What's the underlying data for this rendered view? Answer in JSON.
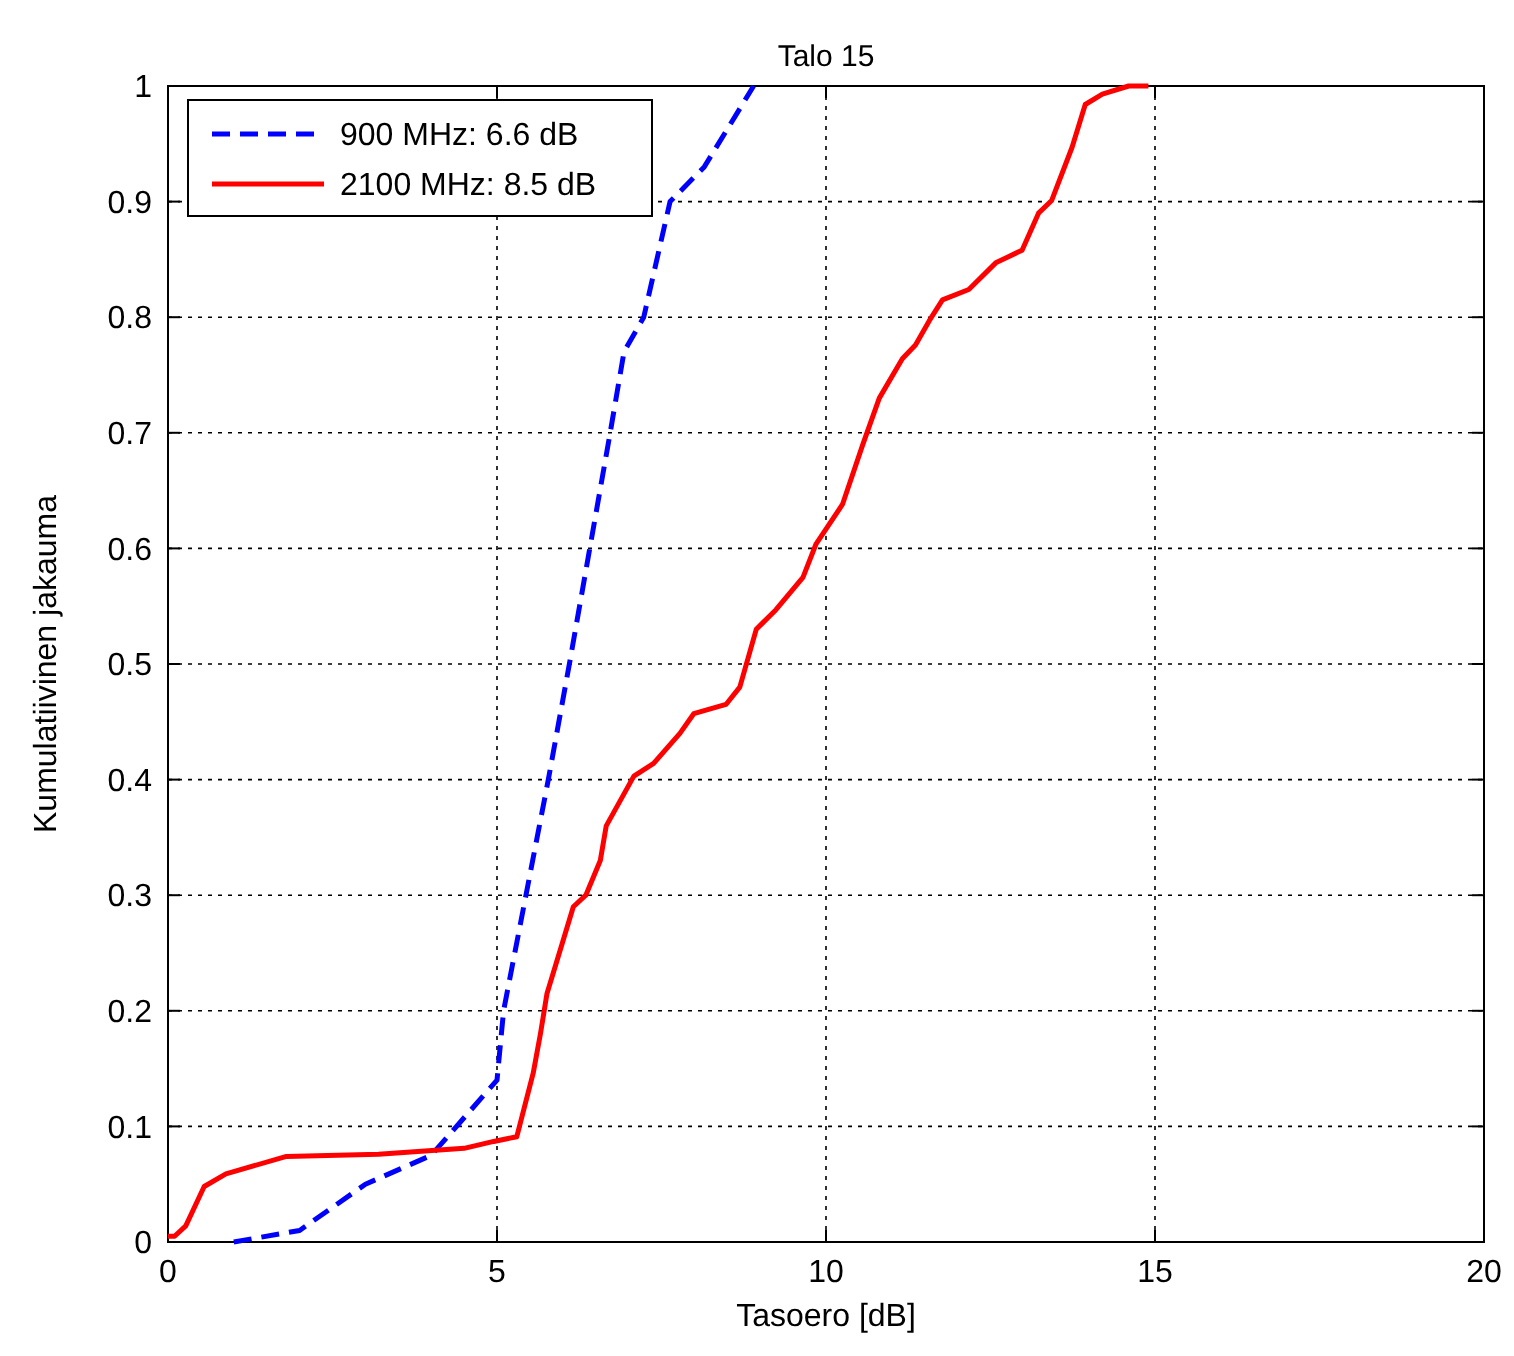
{
  "chart_data": {
    "type": "line",
    "title": "Talo 15",
    "xlabel": "Tasoero [dB]",
    "ylabel": "Kumulatiivinen jakauma",
    "xlim": [
      0,
      20
    ],
    "xticks": [
      0,
      5,
      10,
      15,
      20
    ],
    "ylim": [
      0,
      1
    ],
    "yticks": [
      0,
      0.1,
      0.2,
      0.3,
      0.4,
      0.5,
      0.6,
      0.7,
      0.8,
      0.9,
      1
    ],
    "grid": true,
    "legend": "top left",
    "marker": "none",
    "series": [
      {
        "name": "900 MHz: 6.6 dB",
        "color": "#0000ff",
        "line_style": "dashed",
        "x": [
          1,
          2,
          3,
          4,
          5,
          5.1,
          5.44,
          5.78,
          6.1,
          6.41,
          6.72,
          6.93,
          7.23,
          7.63,
          8.15,
          8.9
        ],
        "values": [
          0,
          0.01,
          0.05,
          0.075,
          0.14,
          0.2,
          0.3,
          0.4,
          0.5,
          0.6,
          0.7,
          0.77,
          0.8,
          0.9,
          0.93,
          1
        ]
      },
      {
        "name": "2100 MHz: 8.5 dB",
        "color": "#ff0000",
        "line_style": "solid",
        "x": [
          0,
          0.1,
          0.27,
          0.55,
          0.88,
          1.8,
          3.2,
          4.5,
          4.95,
          5.3,
          5.55,
          5.66,
          5.76,
          6.0,
          6.16,
          6.35,
          6.57,
          6.66,
          7.08,
          7.38,
          7.78,
          7.99,
          8.48,
          8.69,
          8.94,
          9.24,
          9.65,
          9.85,
          10.25,
          10.56,
          10.81,
          11.16,
          11.36,
          11.57,
          11.77,
          12.17,
          12.58,
          12.98,
          13.23,
          13.43,
          13.74,
          13.94,
          14.2,
          14.6,
          14.9
        ],
        "values": [
          0.005,
          0.005,
          0.014,
          0.048,
          0.059,
          0.074,
          0.076,
          0.081,
          0.087,
          0.091,
          0.146,
          0.18,
          0.215,
          0.26,
          0.29,
          0.3,
          0.33,
          0.36,
          0.403,
          0.414,
          0.44,
          0.457,
          0.465,
          0.48,
          0.53,
          0.547,
          0.575,
          0.604,
          0.638,
          0.69,
          0.73,
          0.764,
          0.776,
          0.797,
          0.815,
          0.824,
          0.847,
          0.858,
          0.89,
          0.901,
          0.947,
          0.984,
          0.993,
          1,
          1
        ]
      }
    ]
  }
}
